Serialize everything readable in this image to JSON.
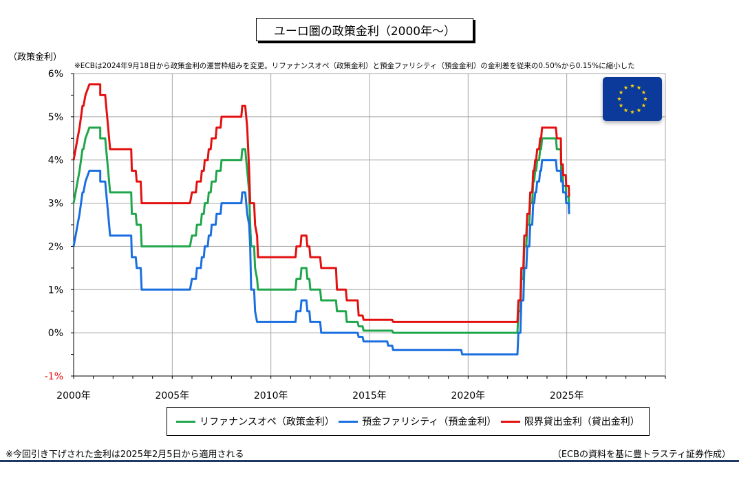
{
  "header": {
    "title": "ユーロ圏の政策金利（2000年～）"
  },
  "notes": {
    "y_unit": "（政策金利）",
    "top": "※ECBは2024年9月18日から政策金利の運営枠組みを変更。リファナンスオペ（政策金利）と預金ファリシティ（預金金利）の金利差を従来の0.50%から0.15%に縮小した",
    "bottom": "※今回引き下げされた金利は2025年2月5日から適用される",
    "source": "（ECBの資料を基に豊トラスティ証券作成）"
  },
  "flag": {
    "icon": "eu-flag-icon",
    "background": "#0b3a9b",
    "star_color": "#ffd700"
  },
  "chart_data": {
    "type": "line",
    "title": "ユーロ圏の政策金利（2000年～）",
    "ylabel": "（政策金利）",
    "xlabel": "",
    "xlim": [
      2000,
      2030
    ],
    "ylim": [
      -1,
      6
    ],
    "grid": true,
    "legend_placement": "bottom",
    "x_ticks": [
      {
        "value": 2000,
        "label": "2000年"
      },
      {
        "value": 2005,
        "label": "2005年"
      },
      {
        "value": 2010,
        "label": "2010年"
      },
      {
        "value": 2015,
        "label": "2015年"
      },
      {
        "value": 2020,
        "label": "2020年"
      },
      {
        "value": 2025,
        "label": "2025年"
      }
    ],
    "y_ticks": [
      {
        "value": 6,
        "label": "6%"
      },
      {
        "value": 5,
        "label": "5%"
      },
      {
        "value": 4,
        "label": "4%"
      },
      {
        "value": 3,
        "label": "3%"
      },
      {
        "value": 2,
        "label": "2%"
      },
      {
        "value": 1,
        "label": "1%"
      },
      {
        "value": 0,
        "label": "0%"
      },
      {
        "value": -1,
        "label": "-1%"
      }
    ],
    "series": [
      {
        "name": "リファナンスオペ（政策金利）",
        "color": "#1fa64a",
        "points": [
          [
            2000.0,
            3.0
          ],
          [
            2000.1,
            3.25
          ],
          [
            2000.2,
            3.5
          ],
          [
            2000.3,
            3.75
          ],
          [
            2000.45,
            4.25
          ],
          [
            2000.5,
            4.25
          ],
          [
            2000.6,
            4.5
          ],
          [
            2000.8,
            4.75
          ],
          [
            2001.35,
            4.75
          ],
          [
            2001.35,
            4.5
          ],
          [
            2001.6,
            4.5
          ],
          [
            2001.65,
            4.25
          ],
          [
            2001.75,
            3.75
          ],
          [
            2001.85,
            3.25
          ],
          [
            2002.92,
            3.25
          ],
          [
            2002.95,
            2.75
          ],
          [
            2003.15,
            2.75
          ],
          [
            2003.2,
            2.5
          ],
          [
            2003.4,
            2.5
          ],
          [
            2003.45,
            2.0
          ],
          [
            2005.9,
            2.0
          ],
          [
            2006.0,
            2.25
          ],
          [
            2006.2,
            2.25
          ],
          [
            2006.25,
            2.5
          ],
          [
            2006.45,
            2.5
          ],
          [
            2006.5,
            2.75
          ],
          [
            2006.6,
            2.75
          ],
          [
            2006.65,
            3.0
          ],
          [
            2006.8,
            3.0
          ],
          [
            2006.85,
            3.25
          ],
          [
            2006.95,
            3.25
          ],
          [
            2007.0,
            3.5
          ],
          [
            2007.2,
            3.5
          ],
          [
            2007.25,
            3.75
          ],
          [
            2007.45,
            3.75
          ],
          [
            2007.5,
            4.0
          ],
          [
            2008.5,
            4.0
          ],
          [
            2008.55,
            4.25
          ],
          [
            2008.7,
            4.25
          ],
          [
            2008.8,
            3.75
          ],
          [
            2008.9,
            3.25
          ],
          [
            2008.95,
            2.5
          ],
          [
            2009.0,
            2.0
          ],
          [
            2009.15,
            2.0
          ],
          [
            2009.2,
            1.5
          ],
          [
            2009.3,
            1.25
          ],
          [
            2009.35,
            1.0
          ],
          [
            2011.25,
            1.0
          ],
          [
            2011.3,
            1.25
          ],
          [
            2011.5,
            1.25
          ],
          [
            2011.55,
            1.5
          ],
          [
            2011.8,
            1.5
          ],
          [
            2011.85,
            1.25
          ],
          [
            2011.95,
            1.25
          ],
          [
            2012.0,
            1.0
          ],
          [
            2012.5,
            1.0
          ],
          [
            2012.55,
            0.75
          ],
          [
            2013.3,
            0.75
          ],
          [
            2013.35,
            0.5
          ],
          [
            2013.8,
            0.5
          ],
          [
            2013.85,
            0.25
          ],
          [
            2014.4,
            0.25
          ],
          [
            2014.45,
            0.15
          ],
          [
            2014.65,
            0.15
          ],
          [
            2014.7,
            0.05
          ],
          [
            2016.15,
            0.05
          ],
          [
            2016.2,
            0.0
          ],
          [
            2022.5,
            0.0
          ],
          [
            2022.55,
            0.5
          ],
          [
            2022.65,
            0.5
          ],
          [
            2022.7,
            1.25
          ],
          [
            2022.8,
            1.25
          ],
          [
            2022.85,
            2.0
          ],
          [
            2022.95,
            2.0
          ],
          [
            2023.0,
            2.5
          ],
          [
            2023.1,
            2.5
          ],
          [
            2023.15,
            3.0
          ],
          [
            2023.25,
            3.0
          ],
          [
            2023.3,
            3.5
          ],
          [
            2023.35,
            3.5
          ],
          [
            2023.4,
            3.75
          ],
          [
            2023.45,
            3.75
          ],
          [
            2023.5,
            4.0
          ],
          [
            2023.6,
            4.0
          ],
          [
            2023.65,
            4.25
          ],
          [
            2023.7,
            4.25
          ],
          [
            2023.75,
            4.5
          ],
          [
            2024.45,
            4.5
          ],
          [
            2024.5,
            4.25
          ],
          [
            2024.7,
            4.25
          ],
          [
            2024.72,
            3.65
          ],
          [
            2024.8,
            3.65
          ],
          [
            2024.82,
            3.4
          ],
          [
            2024.95,
            3.4
          ],
          [
            2024.97,
            3.15
          ],
          [
            2025.1,
            3.15
          ],
          [
            2025.12,
            2.9
          ]
        ]
      },
      {
        "name": "預金ファリシティ（預金金利）",
        "color": "#1a6fe0",
        "points": [
          [
            2000.0,
            2.0
          ],
          [
            2000.1,
            2.25
          ],
          [
            2000.2,
            2.5
          ],
          [
            2000.3,
            2.75
          ],
          [
            2000.45,
            3.25
          ],
          [
            2000.5,
            3.25
          ],
          [
            2000.6,
            3.5
          ],
          [
            2000.8,
            3.75
          ],
          [
            2001.35,
            3.75
          ],
          [
            2001.35,
            3.5
          ],
          [
            2001.6,
            3.5
          ],
          [
            2001.65,
            3.25
          ],
          [
            2001.75,
            2.75
          ],
          [
            2001.85,
            2.25
          ],
          [
            2002.92,
            2.25
          ],
          [
            2002.95,
            1.75
          ],
          [
            2003.15,
            1.75
          ],
          [
            2003.2,
            1.5
          ],
          [
            2003.4,
            1.5
          ],
          [
            2003.45,
            1.0
          ],
          [
            2005.9,
            1.0
          ],
          [
            2006.0,
            1.25
          ],
          [
            2006.2,
            1.25
          ],
          [
            2006.25,
            1.5
          ],
          [
            2006.45,
            1.5
          ],
          [
            2006.5,
            1.75
          ],
          [
            2006.6,
            1.75
          ],
          [
            2006.65,
            2.0
          ],
          [
            2006.8,
            2.0
          ],
          [
            2006.85,
            2.25
          ],
          [
            2006.95,
            2.25
          ],
          [
            2007.0,
            2.5
          ],
          [
            2007.2,
            2.5
          ],
          [
            2007.25,
            2.75
          ],
          [
            2007.45,
            2.75
          ],
          [
            2007.5,
            3.0
          ],
          [
            2008.5,
            3.0
          ],
          [
            2008.55,
            3.25
          ],
          [
            2008.7,
            3.25
          ],
          [
            2008.8,
            2.75
          ],
          [
            2008.9,
            2.5
          ],
          [
            2008.95,
            2.0
          ],
          [
            2009.0,
            1.0
          ],
          [
            2009.15,
            1.0
          ],
          [
            2009.2,
            0.5
          ],
          [
            2009.3,
            0.25
          ],
          [
            2011.25,
            0.25
          ],
          [
            2011.3,
            0.5
          ],
          [
            2011.5,
            0.5
          ],
          [
            2011.55,
            0.75
          ],
          [
            2011.8,
            0.75
          ],
          [
            2011.85,
            0.5
          ],
          [
            2011.95,
            0.5
          ],
          [
            2012.0,
            0.25
          ],
          [
            2012.5,
            0.25
          ],
          [
            2012.55,
            0.0
          ],
          [
            2014.4,
            0.0
          ],
          [
            2014.45,
            -0.1
          ],
          [
            2014.65,
            -0.1
          ],
          [
            2014.7,
            -0.2
          ],
          [
            2015.9,
            -0.2
          ],
          [
            2015.95,
            -0.3
          ],
          [
            2016.15,
            -0.3
          ],
          [
            2016.2,
            -0.4
          ],
          [
            2019.65,
            -0.4
          ],
          [
            2019.7,
            -0.5
          ],
          [
            2022.5,
            -0.5
          ],
          [
            2022.55,
            0.0
          ],
          [
            2022.65,
            0.0
          ],
          [
            2022.7,
            0.75
          ],
          [
            2022.8,
            0.75
          ],
          [
            2022.85,
            1.5
          ],
          [
            2022.95,
            1.5
          ],
          [
            2023.0,
            2.0
          ],
          [
            2023.1,
            2.0
          ],
          [
            2023.15,
            2.5
          ],
          [
            2023.25,
            2.5
          ],
          [
            2023.3,
            3.0
          ],
          [
            2023.35,
            3.0
          ],
          [
            2023.4,
            3.25
          ],
          [
            2023.45,
            3.25
          ],
          [
            2023.5,
            3.5
          ],
          [
            2023.6,
            3.5
          ],
          [
            2023.65,
            3.75
          ],
          [
            2023.7,
            3.75
          ],
          [
            2023.75,
            4.0
          ],
          [
            2024.45,
            4.0
          ],
          [
            2024.5,
            3.75
          ],
          [
            2024.7,
            3.75
          ],
          [
            2024.72,
            3.5
          ],
          [
            2024.8,
            3.5
          ],
          [
            2024.82,
            3.25
          ],
          [
            2024.95,
            3.25
          ],
          [
            2024.97,
            3.0
          ],
          [
            2025.1,
            3.0
          ],
          [
            2025.12,
            2.75
          ]
        ]
      },
      {
        "name": "限界貸出金利（貸出金利）",
        "color": "#e31010",
        "points": [
          [
            2000.0,
            4.0
          ],
          [
            2000.1,
            4.25
          ],
          [
            2000.2,
            4.5
          ],
          [
            2000.3,
            4.75
          ],
          [
            2000.45,
            5.25
          ],
          [
            2000.5,
            5.25
          ],
          [
            2000.6,
            5.5
          ],
          [
            2000.8,
            5.75
          ],
          [
            2001.35,
            5.75
          ],
          [
            2001.35,
            5.5
          ],
          [
            2001.6,
            5.5
          ],
          [
            2001.65,
            5.25
          ],
          [
            2001.75,
            4.75
          ],
          [
            2001.85,
            4.25
          ],
          [
            2002.92,
            4.25
          ],
          [
            2002.95,
            3.75
          ],
          [
            2003.15,
            3.75
          ],
          [
            2003.2,
            3.5
          ],
          [
            2003.4,
            3.5
          ],
          [
            2003.45,
            3.0
          ],
          [
            2005.9,
            3.0
          ],
          [
            2006.0,
            3.25
          ],
          [
            2006.2,
            3.25
          ],
          [
            2006.25,
            3.5
          ],
          [
            2006.45,
            3.5
          ],
          [
            2006.5,
            3.75
          ],
          [
            2006.6,
            3.75
          ],
          [
            2006.65,
            4.0
          ],
          [
            2006.8,
            4.0
          ],
          [
            2006.85,
            4.25
          ],
          [
            2006.95,
            4.25
          ],
          [
            2007.0,
            4.5
          ],
          [
            2007.2,
            4.5
          ],
          [
            2007.25,
            4.75
          ],
          [
            2007.45,
            4.75
          ],
          [
            2007.5,
            5.0
          ],
          [
            2008.5,
            5.0
          ],
          [
            2008.55,
            5.25
          ],
          [
            2008.7,
            5.25
          ],
          [
            2008.8,
            4.75
          ],
          [
            2008.9,
            3.75
          ],
          [
            2008.95,
            3.0
          ],
          [
            2009.15,
            3.0
          ],
          [
            2009.2,
            2.5
          ],
          [
            2009.3,
            2.25
          ],
          [
            2009.35,
            1.75
          ],
          [
            2011.25,
            1.75
          ],
          [
            2011.3,
            2.0
          ],
          [
            2011.5,
            2.0
          ],
          [
            2011.55,
            2.25
          ],
          [
            2011.8,
            2.25
          ],
          [
            2011.85,
            2.0
          ],
          [
            2011.95,
            2.0
          ],
          [
            2012.0,
            1.75
          ],
          [
            2012.5,
            1.75
          ],
          [
            2012.55,
            1.5
          ],
          [
            2013.3,
            1.5
          ],
          [
            2013.35,
            1.0
          ],
          [
            2013.8,
            1.0
          ],
          [
            2013.85,
            0.75
          ],
          [
            2014.4,
            0.75
          ],
          [
            2014.45,
            0.4
          ],
          [
            2014.65,
            0.4
          ],
          [
            2014.7,
            0.3
          ],
          [
            2016.15,
            0.3
          ],
          [
            2016.2,
            0.25
          ],
          [
            2022.5,
            0.25
          ],
          [
            2022.55,
            0.75
          ],
          [
            2022.65,
            0.75
          ],
          [
            2022.7,
            1.5
          ],
          [
            2022.8,
            1.5
          ],
          [
            2022.85,
            2.25
          ],
          [
            2022.95,
            2.25
          ],
          [
            2023.0,
            2.75
          ],
          [
            2023.1,
            2.75
          ],
          [
            2023.15,
            3.25
          ],
          [
            2023.25,
            3.25
          ],
          [
            2023.3,
            3.75
          ],
          [
            2023.35,
            3.75
          ],
          [
            2023.4,
            4.0
          ],
          [
            2023.45,
            4.0
          ],
          [
            2023.5,
            4.25
          ],
          [
            2023.6,
            4.25
          ],
          [
            2023.65,
            4.5
          ],
          [
            2023.7,
            4.5
          ],
          [
            2023.75,
            4.75
          ],
          [
            2024.45,
            4.75
          ],
          [
            2024.5,
            4.5
          ],
          [
            2024.7,
            4.5
          ],
          [
            2024.72,
            3.9
          ],
          [
            2024.8,
            3.9
          ],
          [
            2024.82,
            3.65
          ],
          [
            2024.95,
            3.65
          ],
          [
            2024.97,
            3.4
          ],
          [
            2025.1,
            3.4
          ],
          [
            2025.12,
            3.15
          ]
        ]
      }
    ]
  }
}
